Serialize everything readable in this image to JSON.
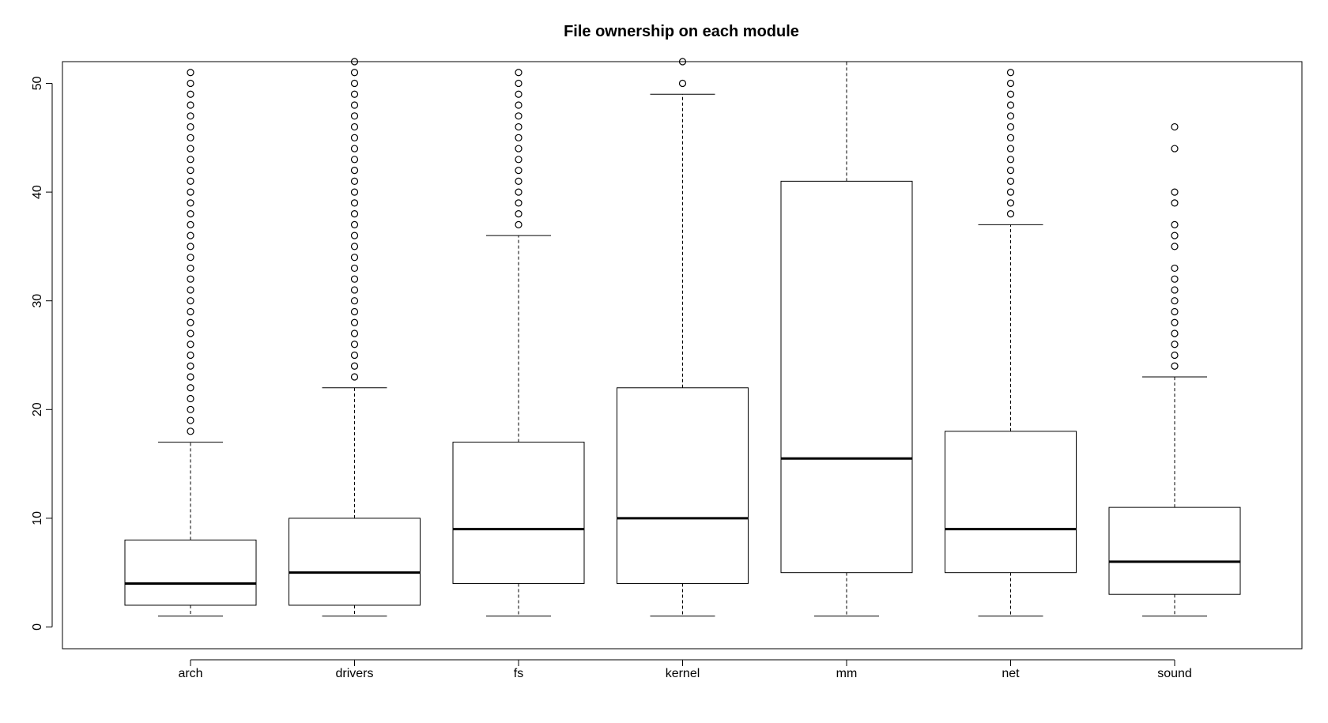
{
  "chart_data": {
    "type": "boxplot",
    "title": "File ownership on each module",
    "xlabel": "",
    "ylabel": "",
    "ylim": [
      -2,
      52
    ],
    "yticks": [
      0,
      10,
      20,
      30,
      40,
      50
    ],
    "categories": [
      "arch",
      "drivers",
      "fs",
      "kernel",
      "mm",
      "net",
      "sound"
    ],
    "boxes": [
      {
        "name": "arch",
        "whisker_low": 1,
        "q1": 2,
        "median": 4,
        "q3": 8,
        "whisker_high": 17,
        "outliers": [
          18,
          19,
          20,
          21,
          22,
          23,
          24,
          25,
          26,
          27,
          28,
          29,
          30,
          31,
          32,
          33,
          34,
          35,
          36,
          37,
          38,
          39,
          40,
          41,
          42,
          43,
          44,
          45,
          46,
          47,
          48,
          49,
          50,
          51
        ]
      },
      {
        "name": "drivers",
        "whisker_low": 1,
        "q1": 2,
        "median": 5,
        "q3": 10,
        "whisker_high": 22,
        "outliers": [
          23,
          24,
          25,
          26,
          27,
          28,
          29,
          30,
          31,
          32,
          33,
          34,
          35,
          36,
          37,
          38,
          39,
          40,
          41,
          42,
          43,
          44,
          45,
          46,
          47,
          48,
          49,
          50,
          51,
          52
        ]
      },
      {
        "name": "fs",
        "whisker_low": 1,
        "q1": 4,
        "median": 9,
        "q3": 17,
        "whisker_high": 36,
        "outliers": [
          37,
          38,
          39,
          40,
          41,
          42,
          43,
          44,
          45,
          46,
          47,
          48,
          49,
          50,
          51
        ]
      },
      {
        "name": "kernel",
        "whisker_low": 1,
        "q1": 4,
        "median": 10,
        "q3": 22,
        "whisker_high": 49,
        "outliers": [
          50,
          52
        ]
      },
      {
        "name": "mm",
        "whisker_low": 1,
        "q1": 5,
        "median": 15.5,
        "q3": 41,
        "whisker_high": 52,
        "outliers": []
      },
      {
        "name": "net",
        "whisker_low": 1,
        "q1": 5,
        "median": 9,
        "q3": 18,
        "whisker_high": 37,
        "outliers": [
          38,
          39,
          40,
          41,
          42,
          43,
          44,
          45,
          46,
          47,
          48,
          49,
          50,
          51
        ]
      },
      {
        "name": "sound",
        "whisker_low": 1,
        "q1": 3,
        "median": 6,
        "q3": 11,
        "whisker_high": 23,
        "outliers": [
          24,
          25,
          26,
          27,
          28,
          29,
          30,
          31,
          32,
          33,
          35,
          36,
          37,
          39,
          40,
          44,
          46
        ]
      }
    ],
    "grid": false,
    "legend": "none"
  }
}
